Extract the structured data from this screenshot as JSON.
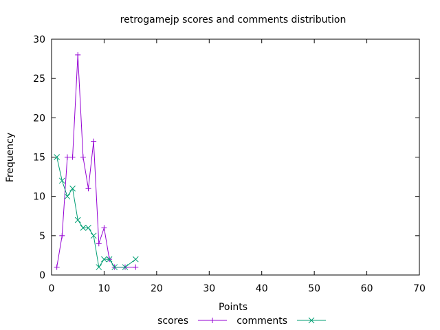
{
  "chart_data": {
    "type": "line",
    "title": "retrogamejp scores and comments distribution",
    "xlabel": "Points",
    "ylabel": "Frequency",
    "xlim": [
      0,
      70
    ],
    "ylim": [
      0,
      30
    ],
    "xticks": [
      0,
      10,
      20,
      30,
      40,
      50,
      60,
      70
    ],
    "yticks": [
      0,
      5,
      10,
      15,
      20,
      25,
      30
    ],
    "grid": false,
    "legend_position": "bottom",
    "series": [
      {
        "name": "scores",
        "color": "#9400d3",
        "marker": "plus",
        "x": [
          1,
          2,
          3,
          4,
          5,
          6,
          7,
          8,
          9,
          10,
          11,
          12,
          14,
          16
        ],
        "y": [
          1,
          5,
          15,
          15,
          28,
          15,
          11,
          17,
          4,
          6,
          2,
          1,
          1,
          1
        ]
      },
      {
        "name": "comments",
        "color": "#009e73",
        "marker": "cross",
        "x": [
          1,
          2,
          3,
          4,
          5,
          6,
          7,
          8,
          9,
          10,
          11,
          12,
          14,
          16
        ],
        "y": [
          15,
          12,
          10,
          11,
          7,
          6,
          6,
          5,
          1,
          2,
          2,
          1,
          1,
          2
        ]
      }
    ]
  }
}
